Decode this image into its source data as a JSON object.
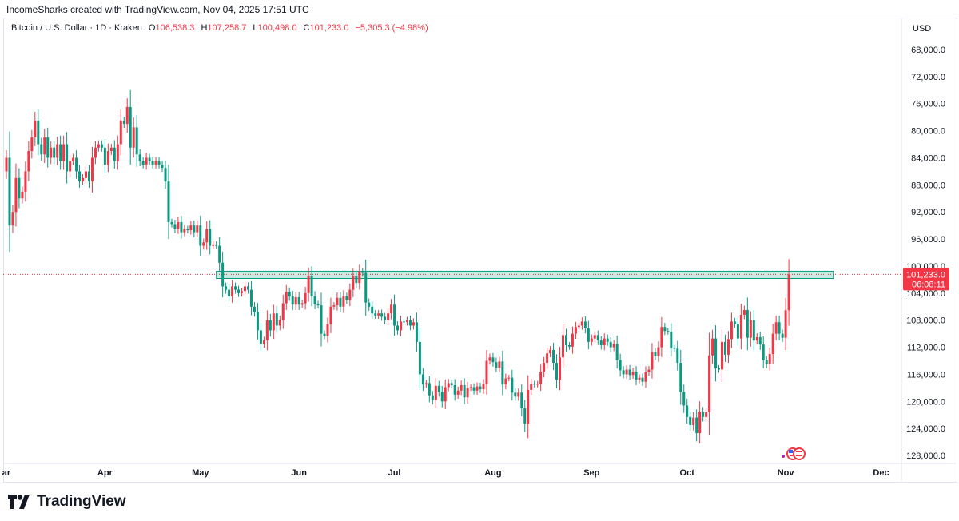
{
  "credit": "IncomeSharks created with TradingView.com, Nov 04, 2025 17:51 UTC",
  "legend": {
    "symbol": "Bitcoin / U.S. Dollar · 1D · Kraken",
    "o_label": "O",
    "o": "106,538.3",
    "h_label": "H",
    "h": "107,258.7",
    "l_label": "L",
    "l": "100,498.0",
    "c_label": "C",
    "c": "101,233.0",
    "change": "−5,305.3 (−4.98%)"
  },
  "currency": "USD",
  "logo_text": "TradingView",
  "colors": {
    "up": "#089981",
    "down": "#f23645",
    "zone": "#089981",
    "last_price": "#f23645"
  },
  "chart_data": {
    "type": "candlestick",
    "price_axis_inverted": true,
    "ylim": [
      66000,
      130000
    ],
    "y_ticks": [
      68000,
      72000,
      76000,
      80000,
      84000,
      88000,
      92000,
      96000,
      100000,
      104000,
      108000,
      112000,
      116000,
      120000,
      124000,
      128000
    ],
    "y_tick_labels": [
      "68,000.0",
      "72,000.0",
      "76,000.0",
      "80,000.0",
      "84,000.0",
      "88,000.0",
      "92,000.0",
      "96,000.0",
      "100,000.0",
      "104,000.0",
      "108,000.0",
      "112,000.0",
      "116,000.0",
      "120,000.0",
      "124,000.0",
      "128,000.0"
    ],
    "x_labels": [
      "ar",
      "Apr",
      "May",
      "Jun",
      "Jul",
      "Aug",
      "Sep",
      "Oct",
      "Nov",
      "Dec"
    ],
    "x_label_days": [
      0,
      31,
      61,
      92,
      122,
      153,
      184,
      214,
      245,
      275
    ],
    "first_open": 86000,
    "closes": [
      84000,
      94000,
      92000,
      87000,
      90000,
      89000,
      86000,
      83000,
      81000,
      78500,
      82000,
      83500,
      81000,
      84000,
      82500,
      84000,
      82000,
      84500,
      82000,
      86000,
      84500,
      84000,
      86000,
      87500,
      87000,
      86000,
      87500,
      84000,
      82500,
      82000,
      82500,
      85000,
      83000,
      82500,
      84500,
      82000,
      78500,
      79000,
      76500,
      82500,
      79500,
      83500,
      84500,
      85000,
      84000,
      84500,
      85000,
      84500,
      85000,
      85500,
      87500,
      93500,
      93800,
      94500,
      93500,
      95000,
      94500,
      94700,
      94000,
      95000,
      94000,
      97000,
      96500,
      94500,
      97000,
      96800,
      97000,
      99500,
      103000,
      103500,
      104500,
      103000,
      103500,
      104000,
      103700,
      103000,
      103500,
      106000,
      106800,
      109500,
      111500,
      111000,
      108000,
      109500,
      107000,
      108800,
      108000,
      105500,
      103800,
      104500,
      105700,
      104600,
      105700,
      105500,
      104000,
      101500,
      104500,
      105600,
      105800,
      110000,
      110300,
      108600,
      106000,
      105800,
      104700,
      106000,
      104500,
      105000,
      103500,
      101500,
      102500,
      100800,
      101000,
      105400,
      106000,
      107000,
      107300,
      107000,
      107500,
      108000,
      107000,
      105700,
      108800,
      109500,
      108200,
      108300,
      108000,
      108800,
      108300,
      111200,
      116000,
      117500,
      117300,
      119100,
      119800,
      117700,
      118600,
      120000,
      117900,
      117300,
      117600,
      119000,
      118400,
      117600,
      119400,
      118000,
      117900,
      118400,
      117800,
      118200,
      117400,
      114000,
      113500,
      114200,
      115000,
      114100,
      117500,
      116600,
      116500,
      118700,
      119300,
      118700,
      121000,
      123300,
      118300,
      117400,
      117500,
      117400,
      115600,
      114300,
      112900,
      112400,
      114300,
      116800,
      113500,
      110200,
      111700,
      111900,
      110000,
      109000,
      108800,
      108200,
      109200,
      111200,
      110700,
      110200,
      111000,
      111700,
      110700,
      111200,
      112000,
      111500,
      113900,
      115400,
      116000,
      115300,
      116100,
      115600,
      116800,
      116500,
      117100,
      115700,
      115300,
      112700,
      113300,
      112000,
      109000,
      109600,
      109700,
      112100,
      112200,
      114300,
      118600,
      120600,
      122300,
      123500,
      122400,
      124700,
      121500,
      122300,
      121600,
      113200,
      110700,
      115100,
      115300,
      111200,
      113100,
      110800,
      108200,
      108600,
      110700,
      107200,
      106500,
      110600,
      108000,
      111000,
      110500,
      111600,
      113900,
      114500,
      113000,
      110000,
      108300,
      110000,
      110600,
      106538.3,
      101233.0
    ],
    "last_price_label": "101,233.0",
    "countdown": "06:08:11",
    "zone": {
      "from": 101000,
      "to": 101600,
      "start_day": 66,
      "end_day": 260
    }
  }
}
